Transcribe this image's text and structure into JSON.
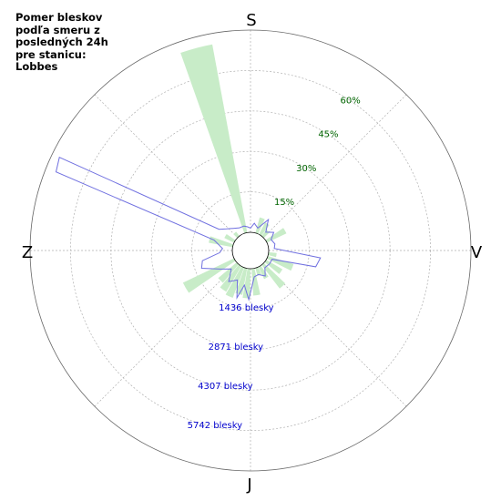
{
  "title": "Pomer bleskov\npodľa smeru z\nposledných 24h\npre stanicu:\nLobbes",
  "chart_data": {
    "type": "polar",
    "directions": {
      "north": "S",
      "east": "V",
      "south": "J",
      "west": "Z"
    },
    "percent_ticks": [
      {
        "value": 15,
        "label": "15%"
      },
      {
        "value": 30,
        "label": "30%"
      },
      {
        "value": 45,
        "label": "45%"
      },
      {
        "value": 60,
        "label": "60%"
      }
    ],
    "count_ticks": [
      {
        "value": 1436,
        "label": "1436 blesky"
      },
      {
        "value": 2871,
        "label": "2871 blesky"
      },
      {
        "value": 4307,
        "label": "4307 blesky"
      },
      {
        "value": 5742,
        "label": "5742 blesky"
      }
    ],
    "percent_max": 75,
    "count_max": 7178,
    "percent_bars": [
      {
        "angle_deg": 345,
        "value": 71
      },
      {
        "angle_deg": 20,
        "value": 6
      },
      {
        "angle_deg": 32,
        "value": 5
      },
      {
        "angle_deg": 42,
        "value": 3
      },
      {
        "angle_deg": 60,
        "value": 8
      },
      {
        "angle_deg": 100,
        "value": 3
      },
      {
        "angle_deg": 112,
        "value": 10
      },
      {
        "angle_deg": 125,
        "value": 7
      },
      {
        "angle_deg": 138,
        "value": 11
      },
      {
        "angle_deg": 150,
        "value": 5
      },
      {
        "angle_deg": 160,
        "value": 3
      },
      {
        "angle_deg": 172,
        "value": 10
      },
      {
        "angle_deg": 185,
        "value": 11
      },
      {
        "angle_deg": 195,
        "value": 10
      },
      {
        "angle_deg": 205,
        "value": 12
      },
      {
        "angle_deg": 215,
        "value": 11
      },
      {
        "angle_deg": 225,
        "value": 9
      },
      {
        "angle_deg": 240,
        "value": 21
      },
      {
        "angle_deg": 285,
        "value": 9
      },
      {
        "angle_deg": 300,
        "value": 4
      },
      {
        "angle_deg": 318,
        "value": 2
      }
    ],
    "count_line": [
      {
        "angle_deg": 0,
        "value": 150
      },
      {
        "angle_deg": 8,
        "value": 330
      },
      {
        "angle_deg": 18,
        "value": 190
      },
      {
        "angle_deg": 30,
        "value": 620
      },
      {
        "angle_deg": 40,
        "value": 200
      },
      {
        "angle_deg": 52,
        "value": 400
      },
      {
        "angle_deg": 62,
        "value": 180
      },
      {
        "angle_deg": 75,
        "value": 250
      },
      {
        "angle_deg": 85,
        "value": 200
      },
      {
        "angle_deg": 96,
        "value": 1850
      },
      {
        "angle_deg": 104,
        "value": 1740
      },
      {
        "angle_deg": 112,
        "value": 180
      },
      {
        "angle_deg": 125,
        "value": 180
      },
      {
        "angle_deg": 140,
        "value": 150
      },
      {
        "angle_deg": 150,
        "value": 400
      },
      {
        "angle_deg": 162,
        "value": 250
      },
      {
        "angle_deg": 172,
        "value": 300
      },
      {
        "angle_deg": 182,
        "value": 1100
      },
      {
        "angle_deg": 190,
        "value": 600
      },
      {
        "angle_deg": 196,
        "value": 1100
      },
      {
        "angle_deg": 204,
        "value": 500
      },
      {
        "angle_deg": 215,
        "value": 700
      },
      {
        "angle_deg": 226,
        "value": 300
      },
      {
        "angle_deg": 238,
        "value": 600
      },
      {
        "angle_deg": 250,
        "value": 1200
      },
      {
        "angle_deg": 258,
        "value": 1100
      },
      {
        "angle_deg": 266,
        "value": 450
      },
      {
        "angle_deg": 274,
        "value": 350
      },
      {
        "angle_deg": 286,
        "value": 700
      },
      {
        "angle_deg": 292,
        "value": 6800
      },
      {
        "angle_deg": 296,
        "value": 6900
      },
      {
        "angle_deg": 304,
        "value": 700
      },
      {
        "angle_deg": 312,
        "value": 500
      },
      {
        "angle_deg": 322,
        "value": 350
      },
      {
        "angle_deg": 334,
        "value": 250
      },
      {
        "angle_deg": 345,
        "value": 250
      },
      {
        "angle_deg": 353,
        "value": 200
      }
    ],
    "colors": {
      "percent_bars": "#c8ecc8",
      "count_line": "#7070e0",
      "percent_labels": "#006400",
      "count_labels": "#0000cd",
      "grid": "#b0b0b0"
    }
  }
}
